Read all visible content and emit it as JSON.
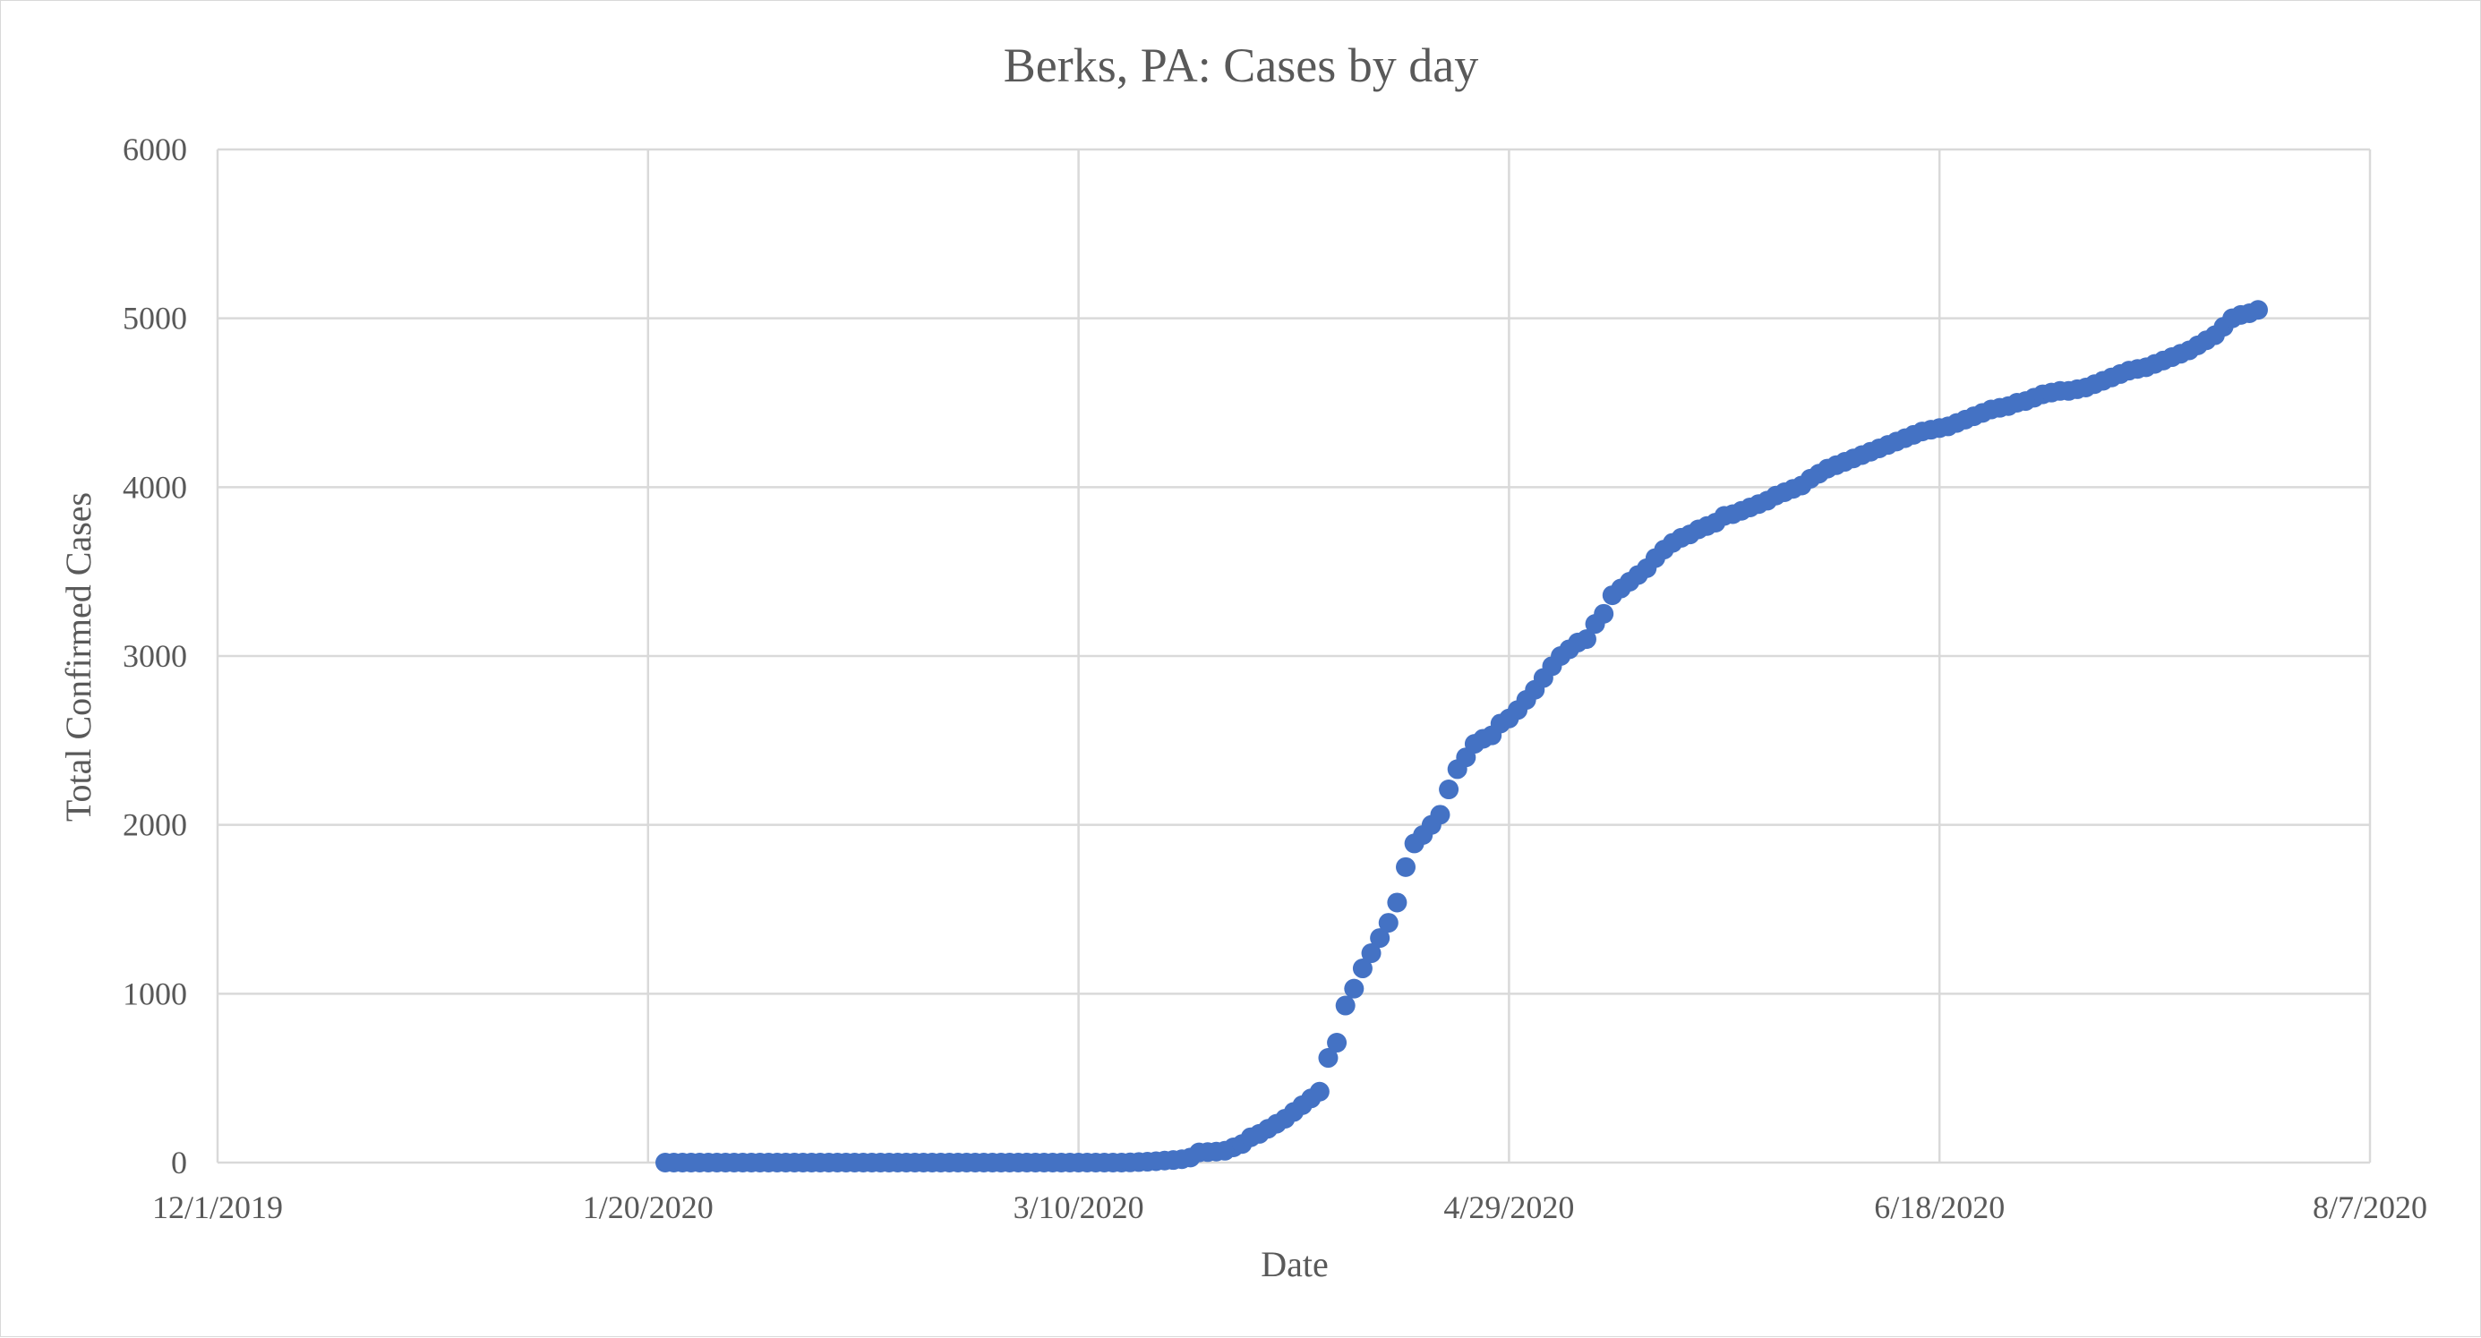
{
  "chart_data": {
    "type": "scatter",
    "title": "Berks, PA: Cases by day",
    "xlabel": "Date",
    "ylabel": "Total Confirmed Cases",
    "x_tick_labels": [
      "12/1/2019",
      "1/20/2020",
      "3/10/2020",
      "4/29/2020",
      "6/18/2020",
      "8/7/2020"
    ],
    "x_tick_dates": [
      "2019-12-01",
      "2020-01-20",
      "2020-03-10",
      "2020-04-29",
      "2020-06-18",
      "2020-08-07"
    ],
    "xlim": [
      "2019-12-01",
      "2020-08-07"
    ],
    "y_ticks": [
      0,
      1000,
      2000,
      3000,
      4000,
      5000,
      6000
    ],
    "y_tick_labels": [
      "0",
      "1000",
      "2000",
      "3000",
      "4000",
      "5000",
      "6000"
    ],
    "ylim": [
      0,
      6000
    ],
    "grid": true,
    "legend": false,
    "marker_color": "#4472c4",
    "series": [
      {
        "points": [
          [
            "2020-01-22",
            0
          ],
          [
            "2020-01-23",
            0
          ],
          [
            "2020-01-24",
            0
          ],
          [
            "2020-01-25",
            0
          ],
          [
            "2020-01-26",
            0
          ],
          [
            "2020-01-27",
            0
          ],
          [
            "2020-01-28",
            0
          ],
          [
            "2020-01-29",
            0
          ],
          [
            "2020-01-30",
            0
          ],
          [
            "2020-01-31",
            0
          ],
          [
            "2020-02-01",
            0
          ],
          [
            "2020-02-02",
            0
          ],
          [
            "2020-02-03",
            0
          ],
          [
            "2020-02-04",
            0
          ],
          [
            "2020-02-05",
            0
          ],
          [
            "2020-02-06",
            0
          ],
          [
            "2020-02-07",
            0
          ],
          [
            "2020-02-08",
            0
          ],
          [
            "2020-02-09",
            0
          ],
          [
            "2020-02-10",
            0
          ],
          [
            "2020-02-11",
            0
          ],
          [
            "2020-02-12",
            0
          ],
          [
            "2020-02-13",
            0
          ],
          [
            "2020-02-14",
            0
          ],
          [
            "2020-02-15",
            0
          ],
          [
            "2020-02-16",
            0
          ],
          [
            "2020-02-17",
            0
          ],
          [
            "2020-02-18",
            0
          ],
          [
            "2020-02-19",
            0
          ],
          [
            "2020-02-20",
            0
          ],
          [
            "2020-02-21",
            0
          ],
          [
            "2020-02-22",
            0
          ],
          [
            "2020-02-23",
            0
          ],
          [
            "2020-02-24",
            0
          ],
          [
            "2020-02-25",
            0
          ],
          [
            "2020-02-26",
            0
          ],
          [
            "2020-02-27",
            0
          ],
          [
            "2020-02-28",
            0
          ],
          [
            "2020-02-29",
            0
          ],
          [
            "2020-03-01",
            0
          ],
          [
            "2020-03-02",
            0
          ],
          [
            "2020-03-03",
            0
          ],
          [
            "2020-03-04",
            0
          ],
          [
            "2020-03-05",
            0
          ],
          [
            "2020-03-06",
            0
          ],
          [
            "2020-03-07",
            0
          ],
          [
            "2020-03-08",
            0
          ],
          [
            "2020-03-09",
            0
          ],
          [
            "2020-03-10",
            0
          ],
          [
            "2020-03-11",
            0
          ],
          [
            "2020-03-12",
            0
          ],
          [
            "2020-03-13",
            0
          ],
          [
            "2020-03-14",
            0
          ],
          [
            "2020-03-15",
            0
          ],
          [
            "2020-03-16",
            1
          ],
          [
            "2020-03-17",
            3
          ],
          [
            "2020-03-18",
            5
          ],
          [
            "2020-03-19",
            8
          ],
          [
            "2020-03-20",
            12
          ],
          [
            "2020-03-21",
            15
          ],
          [
            "2020-03-22",
            20
          ],
          [
            "2020-03-23",
            30
          ],
          [
            "2020-03-24",
            60
          ],
          [
            "2020-03-25",
            62
          ],
          [
            "2020-03-26",
            65
          ],
          [
            "2020-03-27",
            70
          ],
          [
            "2020-03-28",
            90
          ],
          [
            "2020-03-29",
            110
          ],
          [
            "2020-03-30",
            150
          ],
          [
            "2020-03-31",
            170
          ],
          [
            "2020-04-01",
            200
          ],
          [
            "2020-04-02",
            230
          ],
          [
            "2020-04-03",
            260
          ],
          [
            "2020-04-04",
            300
          ],
          [
            "2020-04-05",
            340
          ],
          [
            "2020-04-06",
            380
          ],
          [
            "2020-04-07",
            420
          ],
          [
            "2020-04-08",
            620
          ],
          [
            "2020-04-09",
            710
          ],
          [
            "2020-04-10",
            930
          ],
          [
            "2020-04-11",
            1030
          ],
          [
            "2020-04-12",
            1150
          ],
          [
            "2020-04-13",
            1240
          ],
          [
            "2020-04-14",
            1330
          ],
          [
            "2020-04-15",
            1420
          ],
          [
            "2020-04-16",
            1540
          ],
          [
            "2020-04-17",
            1750
          ],
          [
            "2020-04-18",
            1890
          ],
          [
            "2020-04-19",
            1940
          ],
          [
            "2020-04-20",
            2000
          ],
          [
            "2020-04-21",
            2060
          ],
          [
            "2020-04-22",
            2210
          ],
          [
            "2020-04-23",
            2330
          ],
          [
            "2020-04-24",
            2400
          ],
          [
            "2020-04-25",
            2480
          ],
          [
            "2020-04-26",
            2510
          ],
          [
            "2020-04-27",
            2530
          ],
          [
            "2020-04-28",
            2600
          ],
          [
            "2020-04-29",
            2630
          ],
          [
            "2020-04-30",
            2680
          ],
          [
            "2020-05-01",
            2740
          ],
          [
            "2020-05-02",
            2800
          ],
          [
            "2020-05-03",
            2870
          ],
          [
            "2020-05-04",
            2940
          ],
          [
            "2020-05-05",
            3000
          ],
          [
            "2020-05-06",
            3040
          ],
          [
            "2020-05-07",
            3080
          ],
          [
            "2020-05-08",
            3100
          ],
          [
            "2020-05-09",
            3190
          ],
          [
            "2020-05-10",
            3250
          ],
          [
            "2020-05-11",
            3360
          ],
          [
            "2020-05-12",
            3400
          ],
          [
            "2020-05-13",
            3440
          ],
          [
            "2020-05-14",
            3480
          ],
          [
            "2020-05-15",
            3520
          ],
          [
            "2020-05-16",
            3580
          ],
          [
            "2020-05-17",
            3630
          ],
          [
            "2020-05-18",
            3670
          ],
          [
            "2020-05-19",
            3700
          ],
          [
            "2020-05-20",
            3720
          ],
          [
            "2020-05-21",
            3750
          ],
          [
            "2020-05-22",
            3770
          ],
          [
            "2020-05-23",
            3790
          ],
          [
            "2020-05-24",
            3830
          ],
          [
            "2020-05-25",
            3840
          ],
          [
            "2020-05-26",
            3860
          ],
          [
            "2020-05-27",
            3880
          ],
          [
            "2020-05-28",
            3900
          ],
          [
            "2020-05-29",
            3920
          ],
          [
            "2020-05-30",
            3950
          ],
          [
            "2020-05-31",
            3970
          ],
          [
            "2020-06-01",
            3990
          ],
          [
            "2020-06-02",
            4010
          ],
          [
            "2020-06-03",
            4050
          ],
          [
            "2020-06-04",
            4080
          ],
          [
            "2020-06-05",
            4110
          ],
          [
            "2020-06-06",
            4130
          ],
          [
            "2020-06-07",
            4150
          ],
          [
            "2020-06-08",
            4170
          ],
          [
            "2020-06-09",
            4190
          ],
          [
            "2020-06-10",
            4210
          ],
          [
            "2020-06-11",
            4230
          ],
          [
            "2020-06-12",
            4250
          ],
          [
            "2020-06-13",
            4270
          ],
          [
            "2020-06-14",
            4290
          ],
          [
            "2020-06-15",
            4310
          ],
          [
            "2020-06-16",
            4330
          ],
          [
            "2020-06-17",
            4340
          ],
          [
            "2020-06-18",
            4350
          ],
          [
            "2020-06-19",
            4360
          ],
          [
            "2020-06-20",
            4380
          ],
          [
            "2020-06-21",
            4400
          ],
          [
            "2020-06-22",
            4420
          ],
          [
            "2020-06-23",
            4440
          ],
          [
            "2020-06-24",
            4460
          ],
          [
            "2020-06-25",
            4470
          ],
          [
            "2020-06-26",
            4480
          ],
          [
            "2020-06-27",
            4500
          ],
          [
            "2020-06-28",
            4510
          ],
          [
            "2020-06-29",
            4530
          ],
          [
            "2020-06-30",
            4550
          ],
          [
            "2020-07-01",
            4560
          ],
          [
            "2020-07-02",
            4570
          ],
          [
            "2020-07-03",
            4570
          ],
          [
            "2020-07-04",
            4580
          ],
          [
            "2020-07-05",
            4590
          ],
          [
            "2020-07-06",
            4610
          ],
          [
            "2020-07-07",
            4630
          ],
          [
            "2020-07-08",
            4650
          ],
          [
            "2020-07-09",
            4670
          ],
          [
            "2020-07-10",
            4690
          ],
          [
            "2020-07-11",
            4700
          ],
          [
            "2020-07-12",
            4710
          ],
          [
            "2020-07-13",
            4730
          ],
          [
            "2020-07-14",
            4750
          ],
          [
            "2020-07-15",
            4770
          ],
          [
            "2020-07-16",
            4790
          ],
          [
            "2020-07-17",
            4810
          ],
          [
            "2020-07-18",
            4840
          ],
          [
            "2020-07-19",
            4870
          ],
          [
            "2020-07-20",
            4900
          ],
          [
            "2020-07-21",
            4950
          ],
          [
            "2020-07-22",
            5000
          ],
          [
            "2020-07-23",
            5020
          ],
          [
            "2020-07-24",
            5030
          ],
          [
            "2020-07-25",
            5050
          ]
        ]
      }
    ]
  }
}
